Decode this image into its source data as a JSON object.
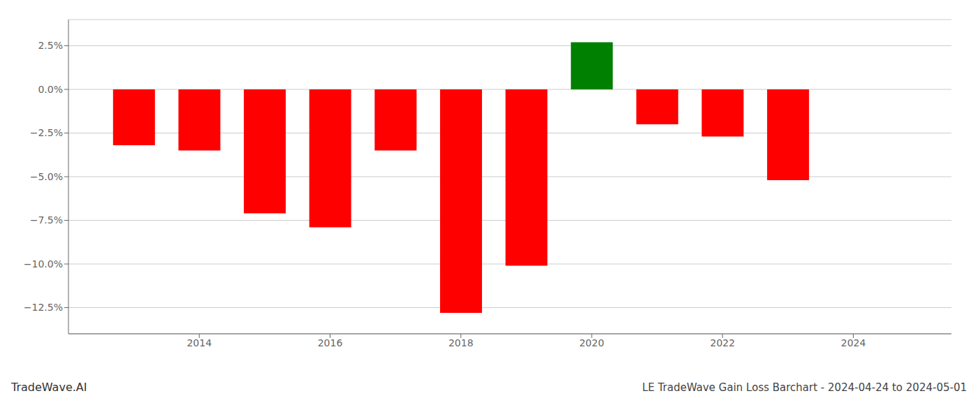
{
  "chart_data": {
    "type": "bar",
    "title": "LE TradeWave Gain Loss Barchart - 2024-04-24 to 2024-05-01",
    "annotations": [
      "TradeWave.AI"
    ],
    "x": [
      2013,
      2014,
      2015,
      2016,
      2017,
      2018,
      2019,
      2020,
      2021,
      2022,
      2023
    ],
    "values": [
      -3.2,
      -3.5,
      -7.1,
      -7.9,
      -3.5,
      -12.8,
      -10.1,
      2.7,
      -2.0,
      -2.7,
      -5.2
    ],
    "colors": [
      "#ff0000",
      "#ff0000",
      "#ff0000",
      "#ff0000",
      "#ff0000",
      "#ff0000",
      "#ff0000",
      "#008000",
      "#ff0000",
      "#ff0000",
      "#ff0000"
    ],
    "xlim": [
      2012.0,
      2025.5
    ],
    "xticks": [
      2014,
      2016,
      2018,
      2020,
      2022,
      2024
    ],
    "ylim": [
      -14.0,
      4.0
    ],
    "yticks": [
      {
        "value": 2.5,
        "label": "2.5%"
      },
      {
        "value": 0.0,
        "label": "0.0%"
      },
      {
        "value": -2.5,
        "label": "−2.5%"
      },
      {
        "value": -5.0,
        "label": "−5.0%"
      },
      {
        "value": -7.5,
        "label": "−7.5%"
      },
      {
        "value": -10.0,
        "label": "−10.0%"
      },
      {
        "value": -12.5,
        "label": "−12.5%"
      }
    ],
    "grid": true
  }
}
